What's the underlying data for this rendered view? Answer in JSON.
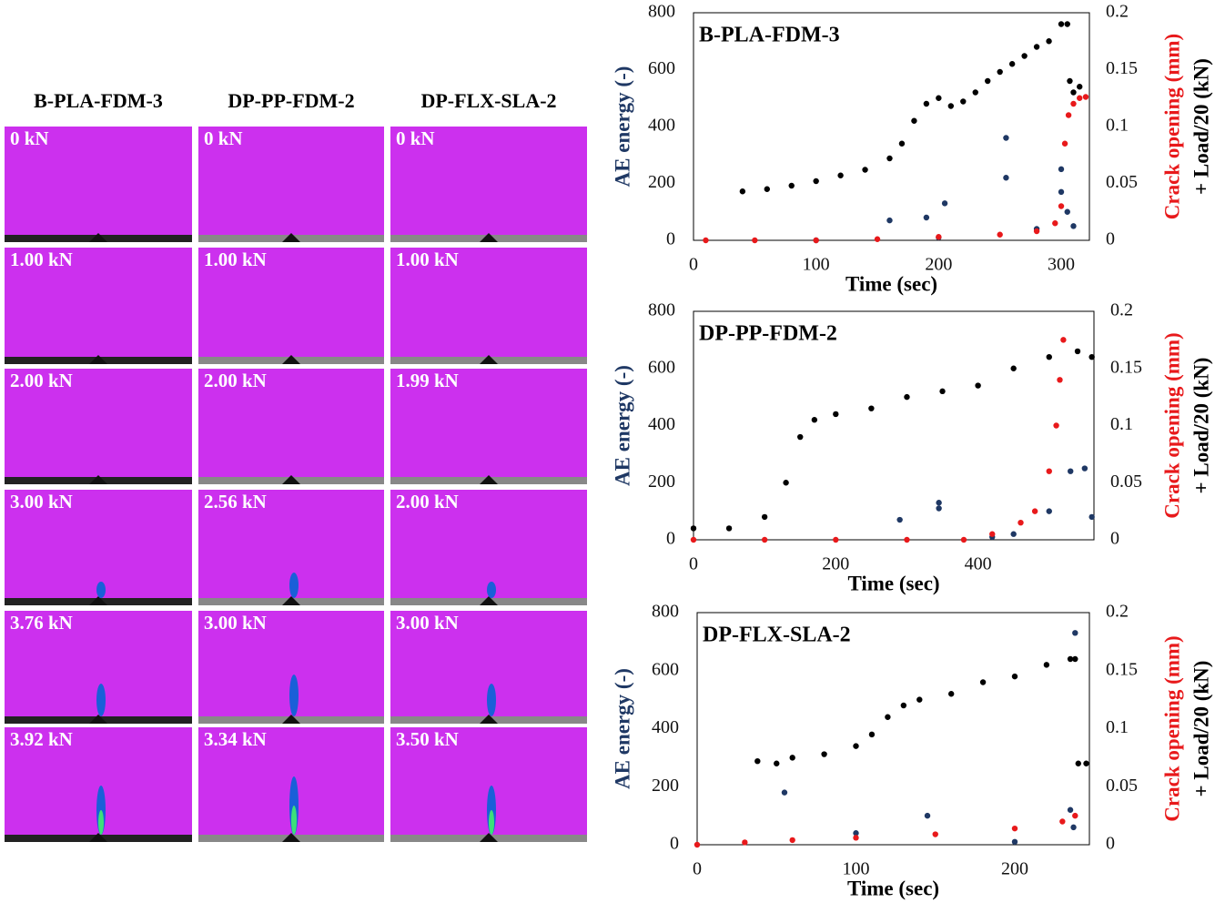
{
  "image_grid": {
    "columns": [
      "B-PLA-FDM-3",
      "DP-PP-FDM-2",
      "DP-FLX-SLA-2"
    ],
    "cells": [
      [
        "0 kN",
        "0 kN",
        "0 kN"
      ],
      [
        "1.00 kN",
        "1.00 kN",
        "1.00 kN"
      ],
      [
        "2.00 kN",
        "2.00 kN",
        "1.99 kN"
      ],
      [
        "3.00 kN",
        "2.56 kN",
        "2.00 kN"
      ],
      [
        "3.76 kN",
        "3.00 kN",
        "3.00 kN"
      ],
      [
        "3.92 kN",
        "3.34 kN",
        "3.50 kN"
      ]
    ]
  },
  "chart_data": [
    {
      "type": "scatter",
      "title": "B-PLA-FDM-3",
      "xlabel": "Time (sec)",
      "ylabel": "AE energy (-)",
      "y2labels": [
        {
          "text": "Crack opening (mm)",
          "color": "#e8191b"
        },
        {
          "text": "+ Load/20 (kN)",
          "color": "#000000"
        }
      ],
      "xlim": [
        0,
        323
      ],
      "xticks": [
        0,
        100,
        200,
        300
      ],
      "ylim": [
        0,
        800
      ],
      "yticks": [
        0,
        200,
        400,
        600,
        800
      ],
      "y2lim": [
        0,
        0.2
      ],
      "y2ticks": [
        0,
        0.05,
        0.1,
        0.15,
        0.2
      ],
      "grid": false,
      "series": [
        {
          "color": "#1f3864",
          "axis": "y",
          "x": [
            100,
            160,
            190,
            200,
            205,
            255,
            255,
            280,
            300,
            300,
            305,
            310
          ],
          "values": [
            0,
            70,
            80,
            10,
            130,
            360,
            220,
            40,
            250,
            170,
            100,
            50
          ]
        },
        {
          "color": "#e8191b",
          "axis": "y2",
          "x": [
            10,
            50,
            100,
            150,
            200,
            250,
            280,
            295,
            300,
            303,
            306,
            310,
            315,
            320
          ],
          "values": [
            0,
            0,
            0,
            0.001,
            0.003,
            0.005,
            0.008,
            0.015,
            0.03,
            0.085,
            0.11,
            0.12,
            0.125,
            0.126
          ]
        },
        {
          "color": "#000000",
          "axis": "y2",
          "x": [
            40,
            60,
            80,
            100,
            120,
            140,
            160,
            170,
            180,
            190,
            200,
            210,
            220,
            230,
            240,
            250,
            260,
            270,
            280,
            290,
            300,
            305,
            307,
            310,
            315
          ],
          "values": [
            0.043,
            0.045,
            0.048,
            0.052,
            0.057,
            0.062,
            0.072,
            0.085,
            0.105,
            0.12,
            0.125,
            0.118,
            0.122,
            0.13,
            0.14,
            0.148,
            0.155,
            0.162,
            0.17,
            0.175,
            0.19,
            0.19,
            0.14,
            0.13,
            0.135
          ]
        }
      ]
    },
    {
      "type": "scatter",
      "title": "DP-PP-FDM-2",
      "xlabel": "Time (sec)",
      "ylabel": "AE energy (-)",
      "y2labels": [
        {
          "text": "Crack opening (mm)",
          "color": "#e8191b"
        },
        {
          "text": "+ Load/20 (kN)",
          "color": "#000000"
        }
      ],
      "xlim": [
        0,
        563
      ],
      "xticks": [
        0,
        200,
        400
      ],
      "ylim": [
        0,
        800
      ],
      "yticks": [
        0,
        200,
        400,
        600,
        800
      ],
      "y2lim": [
        0,
        0.2
      ],
      "y2ticks": [
        0,
        0.05,
        0.1,
        0.15,
        0.2
      ],
      "grid": false,
      "series": [
        {
          "color": "#1f3864",
          "axis": "y",
          "x": [
            290,
            345,
            345,
            420,
            450,
            500,
            530,
            550,
            560
          ],
          "values": [
            70,
            130,
            110,
            10,
            20,
            100,
            240,
            250,
            80
          ]
        },
        {
          "color": "#e8191b",
          "axis": "y2",
          "x": [
            0,
            100,
            200,
            300,
            380,
            420,
            460,
            480,
            500,
            510,
            515,
            520
          ],
          "values": [
            0,
            0,
            0,
            0,
            0,
            0.005,
            0.015,
            0.025,
            0.06,
            0.1,
            0.14,
            0.175
          ]
        },
        {
          "color": "#000000",
          "axis": "y2",
          "x": [
            0,
            50,
            100,
            130,
            150,
            170,
            200,
            250,
            300,
            350,
            400,
            450,
            500,
            540,
            560
          ],
          "values": [
            0.01,
            0.01,
            0.02,
            0.05,
            0.09,
            0.105,
            0.11,
            0.115,
            0.125,
            0.13,
            0.135,
            0.15,
            0.16,
            0.165,
            0.16
          ]
        }
      ]
    },
    {
      "type": "scatter",
      "title": "DP-FLX-SLA-2",
      "xlabel": "Time (sec)",
      "ylabel": "AE energy (-)",
      "y2labels": [
        {
          "text": "Crack opening (mm)",
          "color": "#e8191b"
        },
        {
          "text": "+ Load/20 (kN)",
          "color": "#000000"
        }
      ],
      "xlim": [
        0,
        247
      ],
      "xticks": [
        0,
        100,
        200
      ],
      "ylim": [
        0,
        800
      ],
      "yticks": [
        0,
        200,
        400,
        600,
        800
      ],
      "y2lim": [
        0,
        0.2
      ],
      "y2ticks": [
        0,
        0.05,
        0.1,
        0.15,
        0.2
      ],
      "grid": false,
      "series": [
        {
          "color": "#1f3864",
          "axis": "y",
          "x": [
            55,
            100,
            145,
            200,
            235,
            237,
            238
          ],
          "values": [
            180,
            40,
            100,
            10,
            120,
            60,
            730
          ]
        },
        {
          "color": "#e8191b",
          "axis": "y2",
          "x": [
            0,
            30,
            60,
            100,
            150,
            200,
            230,
            238
          ],
          "values": [
            0,
            0.002,
            0.004,
            0.006,
            0.009,
            0.014,
            0.02,
            0.025
          ]
        },
        {
          "color": "#000000",
          "axis": "y2",
          "x": [
            38,
            50,
            60,
            80,
            100,
            110,
            120,
            130,
            140,
            160,
            180,
            200,
            220,
            235,
            238,
            240,
            245
          ],
          "values": [
            0.072,
            0.07,
            0.075,
            0.078,
            0.085,
            0.095,
            0.11,
            0.12,
            0.125,
            0.13,
            0.14,
            0.145,
            0.155,
            0.16,
            0.16,
            0.07,
            0.07
          ]
        }
      ]
    }
  ]
}
